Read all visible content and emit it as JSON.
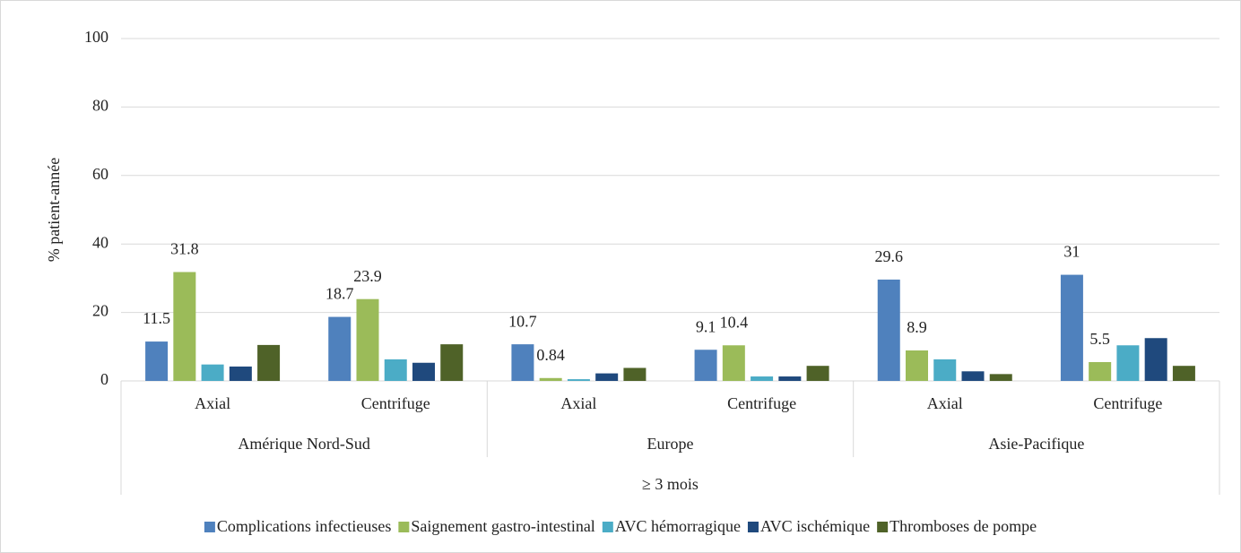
{
  "chart_data": {
    "type": "bar",
    "y_label": "% patient-année",
    "categories": [
      "Axial",
      "Centrifuge",
      "Axial",
      "Centrifuge",
      "Axial",
      "Centrifuge"
    ],
    "groups": [
      "Amérique Nord-Sud",
      "Europe",
      "Asie-Pacifique"
    ],
    "super_group": "≥ 3 mois",
    "series": [
      {
        "name": "Complications infectieuses",
        "color": "#4f81bd",
        "show_labels": true,
        "values": [
          11.5,
          18.7,
          10.7,
          9.1,
          29.6,
          31
        ]
      },
      {
        "name": "Saignement gastro-intestinal",
        "color": "#9bbb59",
        "show_labels": true,
        "values": [
          31.8,
          23.9,
          0.84,
          10.4,
          8.9,
          5.5
        ]
      },
      {
        "name": "AVC hémorragique",
        "color": "#4bacc6",
        "show_labels": false,
        "values": [
          4.8,
          6.3,
          0.5,
          1.3,
          6.3,
          10.4
        ]
      },
      {
        "name": "AVC ischémique",
        "color": "#1f497d",
        "show_labels": false,
        "values": [
          4.2,
          5.3,
          2.2,
          1.3,
          2.8,
          12.5
        ]
      },
      {
        "name": "Thromboses de pompe",
        "color": "#4f6228",
        "show_labels": false,
        "values": [
          10.5,
          10.7,
          3.8,
          4.4,
          2.0,
          4.4
        ]
      }
    ],
    "ylim": [
      0,
      100
    ],
    "yticks": [
      0,
      20,
      40,
      60,
      80,
      100
    ],
    "grid": true,
    "legend": "bottom"
  }
}
